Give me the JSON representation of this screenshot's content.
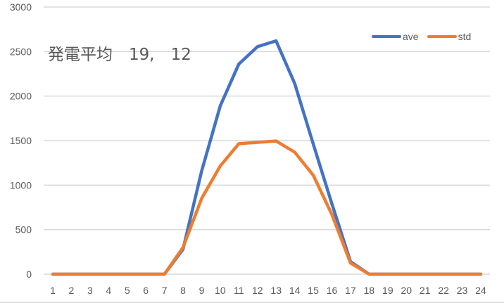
{
  "chart_data": {
    "type": "line",
    "title": "発電平均　19,　12",
    "xlabel": "",
    "ylabel": "",
    "categories": [
      "1",
      "2",
      "3",
      "4",
      "5",
      "6",
      "7",
      "8",
      "9",
      "10",
      "11",
      "12",
      "13",
      "14",
      "15",
      "16",
      "17",
      "18",
      "19",
      "20",
      "21",
      "22",
      "23",
      "24"
    ],
    "y_ticks": [
      "0",
      "500",
      "1000",
      "1500",
      "2000",
      "2500",
      "3000"
    ],
    "ylim": [
      0,
      3000
    ],
    "grid": true,
    "legend_position": "top-right",
    "series": [
      {
        "name": "ave",
        "color": "#4472c4",
        "values": [
          0,
          0,
          0,
          0,
          0,
          0,
          0,
          280,
          1160,
          1890,
          2360,
          2555,
          2620,
          2140,
          1460,
          790,
          140,
          0,
          0,
          0,
          0,
          0,
          0,
          0
        ]
      },
      {
        "name": "std",
        "color": "#ed7d31",
        "values": [
          0,
          0,
          0,
          0,
          0,
          0,
          0,
          300,
          850,
          1215,
          1465,
          1480,
          1495,
          1370,
          1110,
          670,
          125,
          0,
          0,
          0,
          0,
          0,
          0,
          0
        ]
      }
    ]
  },
  "legend": {
    "items": [
      {
        "label": "ave",
        "color": "#4472c4"
      },
      {
        "label": "std",
        "color": "#ed7d31"
      }
    ]
  }
}
